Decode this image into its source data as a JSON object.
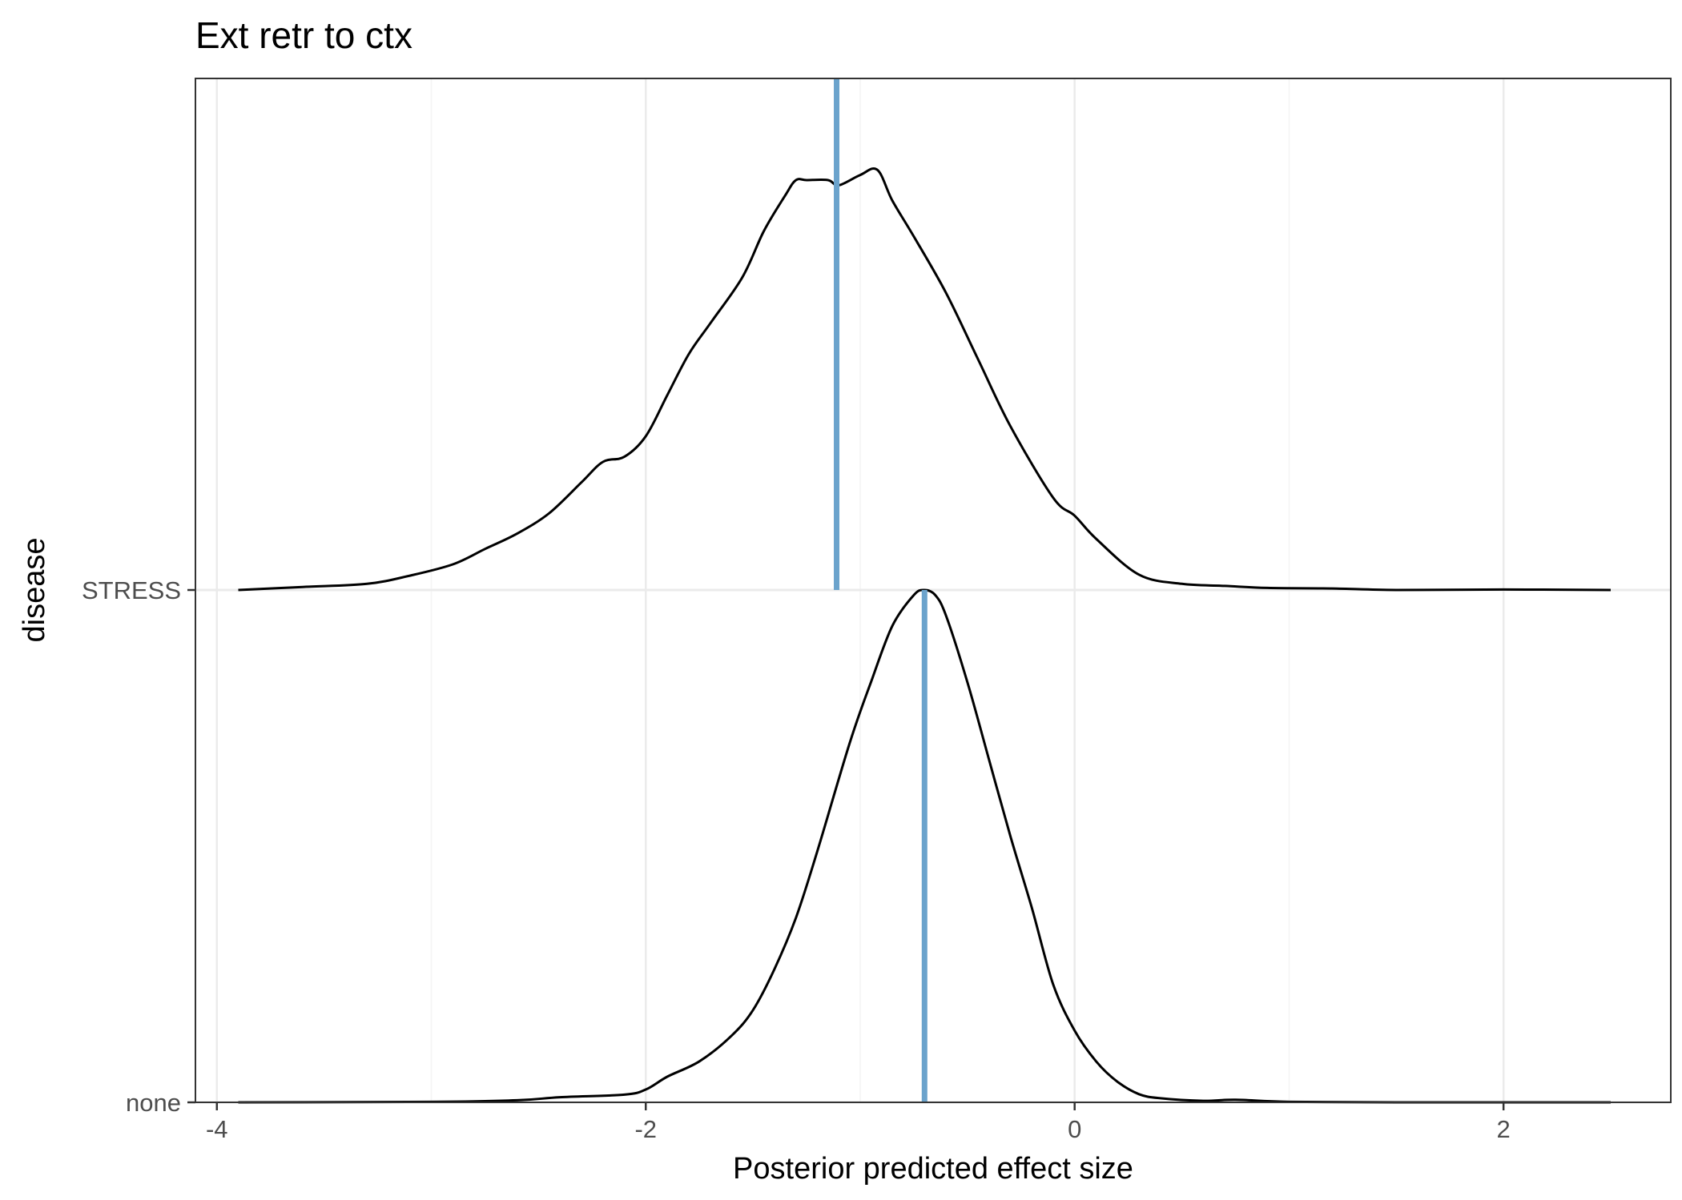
{
  "chart_data": {
    "type": "ridgeline-density",
    "title": "Ext retr to ctx",
    "xlabel": "Posterior predicted effect size",
    "ylabel": "disease",
    "xlim": [
      -4.1,
      2.78
    ],
    "x_ticks": [
      -4,
      -2,
      0,
      2
    ],
    "x_tick_labels": [
      "-4",
      "-2",
      "0",
      "2"
    ],
    "x_minor_gridlines": [
      -3,
      -1,
      1
    ],
    "grid": true,
    "legend": "none",
    "categories": [
      "none",
      "STRESS"
    ],
    "median_line_color": "#6BA3CC",
    "curve_color": "#000000",
    "series": [
      {
        "name": "STRESS",
        "median": -1.11,
        "density": {
          "x": [
            -3.9,
            -3.6,
            -3.3,
            -3.1,
            -2.9,
            -2.75,
            -2.6,
            -2.45,
            -2.3,
            -2.2,
            -2.1,
            -2.0,
            -1.9,
            -1.8,
            -1.7,
            -1.55,
            -1.45,
            -1.35,
            -1.3,
            -1.25,
            -1.15,
            -1.1,
            -1.0,
            -0.92,
            -0.85,
            -0.75,
            -0.6,
            -0.45,
            -0.3,
            -0.1,
            0.0,
            0.1,
            0.3,
            0.5,
            0.7,
            0.9,
            1.2,
            1.5,
            2.0,
            2.5
          ],
          "y": [
            0.0,
            0.006,
            0.012,
            0.028,
            0.05,
            0.08,
            0.11,
            0.15,
            0.21,
            0.25,
            0.26,
            0.3,
            0.38,
            0.46,
            0.52,
            0.61,
            0.7,
            0.77,
            0.8,
            0.8,
            0.8,
            0.79,
            0.81,
            0.82,
            0.76,
            0.69,
            0.58,
            0.45,
            0.32,
            0.18,
            0.145,
            0.1,
            0.03,
            0.012,
            0.008,
            0.004,
            0.003,
            0.0,
            0.001,
            0.0
          ]
        }
      },
      {
        "name": "none",
        "median": -0.7,
        "density": {
          "x": [
            -3.9,
            -3.0,
            -2.6,
            -2.4,
            -2.1,
            -2.0,
            -1.9,
            -1.75,
            -1.6,
            -1.5,
            -1.4,
            -1.3,
            -1.2,
            -1.05,
            -0.95,
            -0.85,
            -0.75,
            -0.7,
            -0.65,
            -0.6,
            -0.5,
            -0.4,
            -0.3,
            -0.2,
            -0.1,
            0.0,
            0.1,
            0.2,
            0.3,
            0.4,
            0.6,
            0.75,
            1.0,
            1.5,
            2.5
          ],
          "y": [
            0.0,
            0.001,
            0.004,
            0.01,
            0.015,
            0.025,
            0.05,
            0.08,
            0.13,
            0.18,
            0.26,
            0.36,
            0.49,
            0.7,
            0.82,
            0.93,
            0.99,
            1.0,
            0.99,
            0.95,
            0.82,
            0.67,
            0.52,
            0.38,
            0.23,
            0.14,
            0.08,
            0.04,
            0.016,
            0.008,
            0.003,
            0.005,
            0.001,
            0.0,
            0.0
          ]
        }
      }
    ]
  }
}
